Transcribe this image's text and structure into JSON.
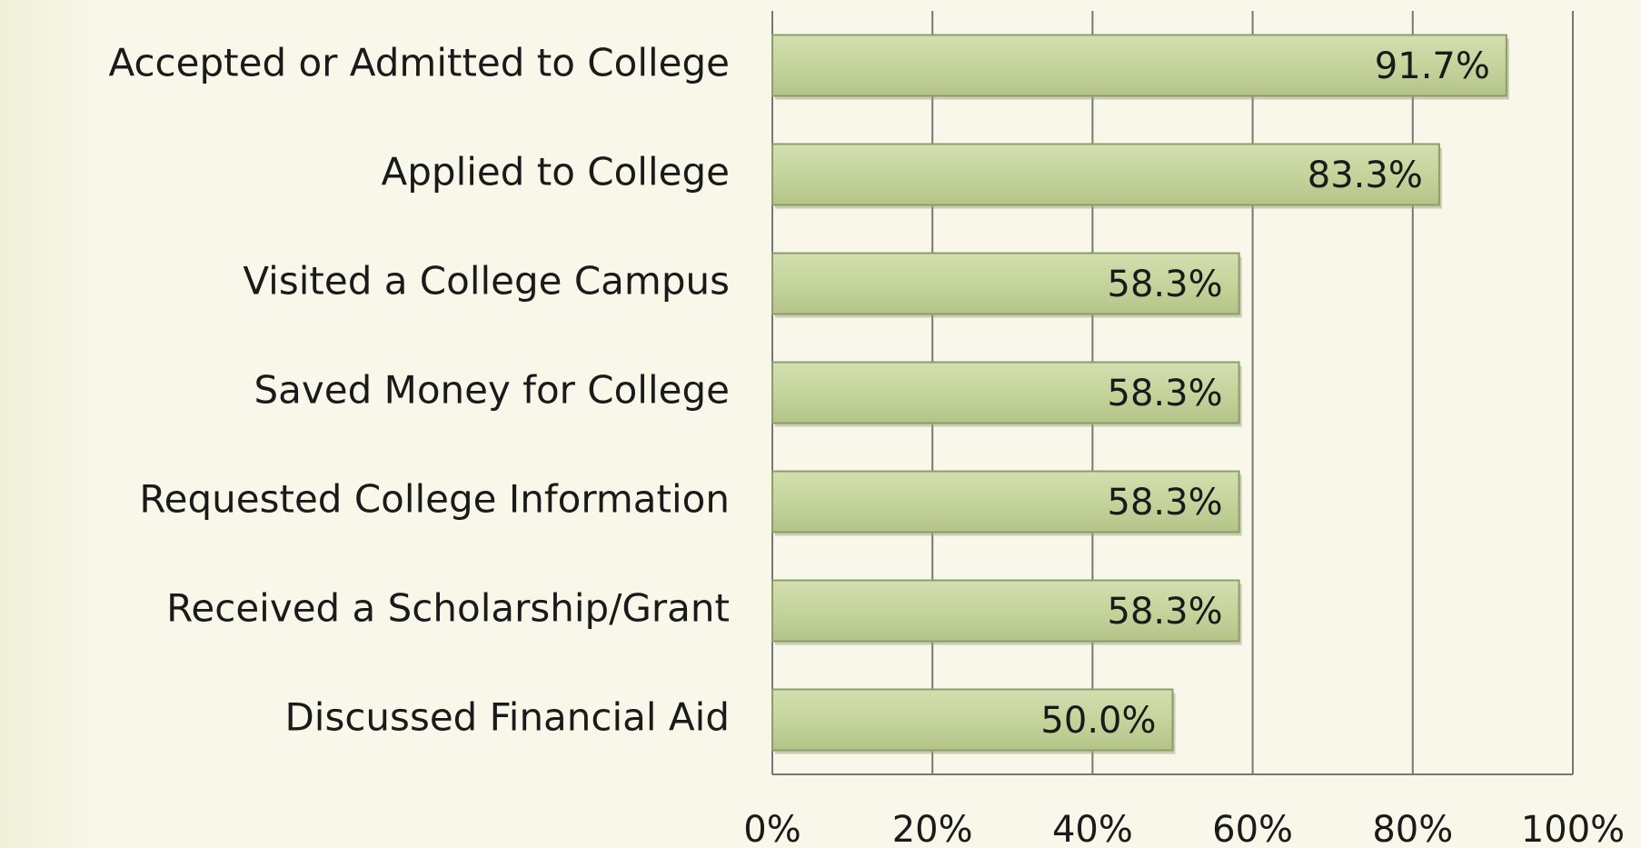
{
  "chart_data": {
    "type": "bar",
    "orientation": "horizontal",
    "categories": [
      "Accepted or Admitted to College",
      "Applied to College",
      "Visited a College Campus",
      "Saved Money for College",
      "Requested College Information",
      "Received a Scholarship/Grant",
      "Discussed Financial Aid"
    ],
    "values": [
      91.7,
      83.3,
      58.3,
      58.3,
      58.3,
      58.3,
      50.0
    ],
    "value_labels": [
      "91.7%",
      "83.3%",
      "58.3%",
      "58.3%",
      "58.3%",
      "58.3%",
      "50.0%"
    ],
    "color": "#c5d49c",
    "xlim": [
      0,
      100
    ],
    "xticks": [
      {
        "value": 0,
        "label": "0%"
      },
      {
        "value": 20,
        "label": "20%"
      },
      {
        "value": 40,
        "label": "40%"
      },
      {
        "value": 60,
        "label": "60%"
      },
      {
        "value": 80,
        "label": "80%"
      },
      {
        "value": 100,
        "label": "100%"
      }
    ],
    "grid": true
  }
}
